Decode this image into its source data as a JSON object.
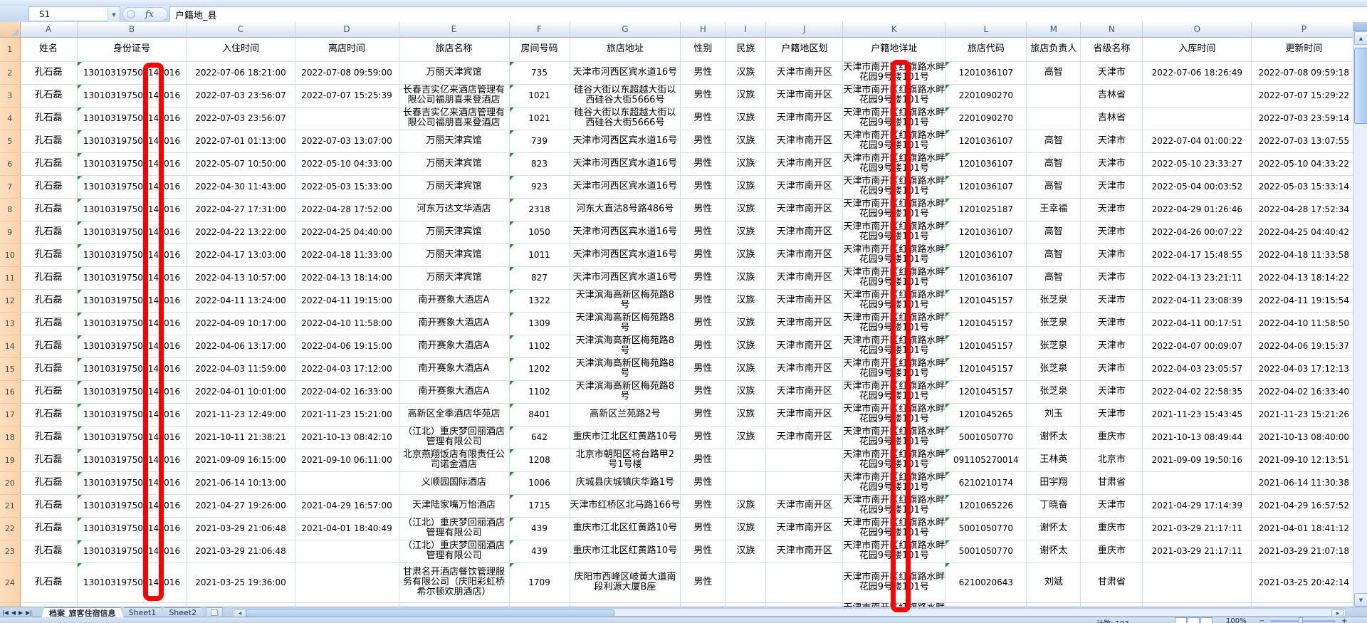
{
  "formula_bar": {
    "name_box": "S1",
    "fx_label": "fx",
    "value": "户籍地_县"
  },
  "column_letters": [
    "A",
    "B",
    "C",
    "D",
    "E",
    "F",
    "G",
    "H",
    "I",
    "J",
    "K",
    "L",
    "M",
    "N",
    "O",
    "P"
  ],
  "field_headers": [
    "姓名",
    "身份证号",
    "入住时间",
    "离店时间",
    "旅店名称",
    "房间号码",
    "旅店地址",
    "性别",
    "民族",
    "户籍地区划",
    "户籍地详址",
    "旅店代码",
    "旅店负责人",
    "省级名称",
    "入库时间",
    "更新时间"
  ],
  "household_detail_address": [
    "天津市南开区红旗路水畔",
    "花园9号楼101号"
  ],
  "annotations": {
    "highlight_color": "#FF0000",
    "targets": [
      "id-number-digits-column-B",
      "household-detail-address-column-K"
    ]
  },
  "rows": [
    {
      "n": 2,
      "name": "孔石磊",
      "id": [
        "13010319750",
        "14",
        "016"
      ],
      "in": "2022-07-06 18:21:00",
      "out": "2022-07-08 09:59:00",
      "hotel": "万丽天津宾馆",
      "room": "735",
      "addr": "天津市河西区宾水道16号",
      "sex": "男性",
      "ethnic": "汉族",
      "region": "天津市南开区",
      "code": "1201036107",
      "manager": "高智",
      "province": "天津市",
      "stored": "2022-07-06 18:26:49",
      "updated": "2022-07-08 09:59:18"
    },
    {
      "n": 3,
      "name": "孔石磊",
      "id": [
        "13010319750",
        "14",
        "016"
      ],
      "in": "2022-07-03 23:56:07",
      "out": "2022-07-07 15:25:39",
      "hotel": [
        "长春吉实亿来酒店管理有",
        "限公司福朋喜来登酒店"
      ],
      "room": "1021",
      "addr": [
        "硅谷大街以东超越大街以",
        "西硅谷大街5666号"
      ],
      "sex": "男性",
      "ethnic": "汉族",
      "region": "天津市南开区",
      "code": "2201090270",
      "manager": "",
      "province": "吉林省",
      "stored": "",
      "updated": "2022-07-07 15:29:22"
    },
    {
      "n": 4,
      "name": "孔石磊",
      "id": [
        "13010319750",
        "14",
        "016"
      ],
      "in": "2022-07-03 23:56:07",
      "out": "",
      "hotel": [
        "长春吉实亿来酒店管理有",
        "限公司福朋喜来登酒店"
      ],
      "room": "1021",
      "addr": [
        "硅谷大街以东超越大街以",
        "西硅谷大街5666号"
      ],
      "sex": "男性",
      "ethnic": "汉族",
      "region": "天津市南开区",
      "code": "2201090270",
      "manager": "",
      "province": "吉林省",
      "stored": "",
      "updated": "2022-07-03 23:59:14"
    },
    {
      "n": 5,
      "name": "孔石磊",
      "id": [
        "13010319750",
        "14",
        "016"
      ],
      "in": "2022-07-01 01:13:00",
      "out": "2022-07-03 13:07:00",
      "hotel": "万丽天津宾馆",
      "room": "739",
      "addr": "天津市河西区宾水道16号",
      "sex": "男性",
      "ethnic": "汉族",
      "region": "天津市南开区",
      "code": "1201036107",
      "manager": "高智",
      "province": "天津市",
      "stored": "2022-07-04 01:00:22",
      "updated": "2022-07-03 13:07:55"
    },
    {
      "n": 6,
      "name": "孔石磊",
      "id": [
        "13010319750",
        "14",
        "016"
      ],
      "in": "2022-05-07 10:50:00",
      "out": "2022-05-10 04:33:00",
      "hotel": "万丽天津宾馆",
      "room": "823",
      "addr": "天津市河西区宾水道16号",
      "sex": "男性",
      "ethnic": "汉族",
      "region": "天津市南开区",
      "code": "1201036107",
      "manager": "高智",
      "province": "天津市",
      "stored": "2022-05-10 23:33:27",
      "updated": "2022-05-10 04:33:22"
    },
    {
      "n": 7,
      "name": "孔石磊",
      "id": [
        "13010319750",
        "14",
        "016"
      ],
      "in": "2022-04-30 11:43:00",
      "out": "2022-05-03 15:33:00",
      "hotel": "万丽天津宾馆",
      "room": "923",
      "addr": "天津市河西区宾水道16号",
      "sex": "男性",
      "ethnic": "汉族",
      "region": "天津市南开区",
      "code": "1201036107",
      "manager": "高智",
      "province": "天津市",
      "stored": "2022-05-04 00:03:52",
      "updated": "2022-05-03 15:33:14"
    },
    {
      "n": 8,
      "name": "孔石磊",
      "id": [
        "13010319750",
        "14",
        "016"
      ],
      "in": "2022-04-27 17:31:00",
      "out": "2022-04-28 17:52:00",
      "hotel": "河东万达文华酒店",
      "room": "2318",
      "addr": "河东大直沽8号路486号",
      "sex": "男性",
      "ethnic": "汉族",
      "region": "天津市南开区",
      "code": "1201025187",
      "manager": "王幸福",
      "province": "天津市",
      "stored": "2022-04-29 01:26:46",
      "updated": "2022-04-28 17:52:34"
    },
    {
      "n": 9,
      "name": "孔石磊",
      "id": [
        "13010319750",
        "14",
        "016"
      ],
      "in": "2022-04-22 13:22:00",
      "out": "2022-04-25 04:40:00",
      "hotel": "万丽天津宾馆",
      "room": "1050",
      "addr": "天津市河西区宾水道16号",
      "sex": "男性",
      "ethnic": "汉族",
      "region": "天津市南开区",
      "code": "1201036107",
      "manager": "高智",
      "province": "天津市",
      "stored": "2022-04-26 00:07:22",
      "updated": "2022-04-25 04:40:42"
    },
    {
      "n": 10,
      "name": "孔石磊",
      "id": [
        "13010319750",
        "14",
        "016"
      ],
      "in": "2022-04-17 13:03:00",
      "out": "2022-04-18 11:33:00",
      "hotel": "万丽天津宾馆",
      "room": "1011",
      "addr": "天津市河西区宾水道16号",
      "sex": "男性",
      "ethnic": "汉族",
      "region": "天津市南开区",
      "code": "1201036107",
      "manager": "高智",
      "province": "天津市",
      "stored": "2022-04-17 15:48:55",
      "updated": "2022-04-18 11:33:58"
    },
    {
      "n": 11,
      "name": "孔石磊",
      "id": [
        "13010319750",
        "14",
        "016"
      ],
      "in": "2022-04-13 10:57:00",
      "out": "2022-04-13 18:14:00",
      "hotel": "万丽天津宾馆",
      "room": "827",
      "addr": "天津市河西区宾水道16号",
      "sex": "男性",
      "ethnic": "汉族",
      "region": "天津市南开区",
      "code": "1201036107",
      "manager": "高智",
      "province": "天津市",
      "stored": "2022-04-13 23:21:11",
      "updated": "2022-04-13 18:14:22"
    },
    {
      "n": 12,
      "name": "孔石磊",
      "id": [
        "13010319750",
        "14",
        "016"
      ],
      "in": "2022-04-11 13:24:00",
      "out": "2022-04-11 19:15:00",
      "hotel": "南开赛象大酒店A",
      "room": "1322",
      "addr": [
        "天津滨海高新区梅苑路8",
        "号"
      ],
      "sex": "男性",
      "ethnic": "汉族",
      "region": "天津市南开区",
      "code": "1201045157",
      "manager": "张芝泉",
      "province": "天津市",
      "stored": "2022-04-11 23:08:39",
      "updated": "2022-04-11 19:15:54"
    },
    {
      "n": 13,
      "name": "孔石磊",
      "id": [
        "13010319750",
        "14",
        "016"
      ],
      "in": "2022-04-09 10:17:00",
      "out": "2022-04-10 11:58:00",
      "hotel": "南开赛象大酒店A",
      "room": "1309",
      "addr": [
        "天津滨海高新区梅苑路8",
        "号"
      ],
      "sex": "男性",
      "ethnic": "汉族",
      "region": "天津市南开区",
      "code": "1201045157",
      "manager": "张芝泉",
      "province": "天津市",
      "stored": "2022-04-11 00:17:51",
      "updated": "2022-04-10 11:58:50"
    },
    {
      "n": 14,
      "name": "孔石磊",
      "id": [
        "13010319750",
        "14",
        "016"
      ],
      "in": "2022-04-06 13:17:00",
      "out": "2022-04-06 19:15:00",
      "hotel": "南开赛象大酒店A",
      "room": "1102",
      "addr": [
        "天津滨海高新区梅苑路8",
        "号"
      ],
      "sex": "男性",
      "ethnic": "汉族",
      "region": "天津市南开区",
      "code": "1201045157",
      "manager": "张芝泉",
      "province": "天津市",
      "stored": "2022-04-07 00:09:07",
      "updated": "2022-04-06 19:15:37"
    },
    {
      "n": 15,
      "name": "孔石磊",
      "id": [
        "13010319750",
        "14",
        "016"
      ],
      "in": "2022-04-03 11:59:00",
      "out": "2022-04-03 17:12:00",
      "hotel": "南开赛象大酒店A",
      "room": "1202",
      "addr": [
        "天津滨海高新区梅苑路8",
        "号"
      ],
      "sex": "男性",
      "ethnic": "汉族",
      "region": "天津市南开区",
      "code": "1201045157",
      "manager": "张芝泉",
      "province": "天津市",
      "stored": "2022-04-03 23:05:57",
      "updated": "2022-04-03 17:12:13"
    },
    {
      "n": 16,
      "name": "孔石磊",
      "id": [
        "13010319750",
        "14",
        "016"
      ],
      "in": "2022-04-01 10:01:00",
      "out": "2022-04-02 16:33:00",
      "hotel": "南开赛象大酒店A",
      "room": "1102",
      "addr": [
        "天津滨海高新区梅苑路8",
        "号"
      ],
      "sex": "男性",
      "ethnic": "汉族",
      "region": "天津市南开区",
      "code": "1201045157",
      "manager": "张芝泉",
      "province": "天津市",
      "stored": "2022-04-02 22:58:35",
      "updated": "2022-04-02 16:33:40"
    },
    {
      "n": 17,
      "name": "孔石磊",
      "id": [
        "13010319750",
        "14",
        "016"
      ],
      "in": "2021-11-23 12:49:00",
      "out": "2021-11-23 15:21:00",
      "hotel": "高新区全季酒店华苑店",
      "room": "8401",
      "addr": "高新区兰苑路2号",
      "sex": "男性",
      "ethnic": "汉族",
      "region": "天津市南开区",
      "code": "1201045265",
      "manager": "刘玉",
      "province": "天津市",
      "stored": "2021-11-23 15:43:45",
      "updated": "2021-11-23 15:21:26"
    },
    {
      "n": 18,
      "name": "孔石磊",
      "id": [
        "13010319750",
        "14",
        "016"
      ],
      "in": "2021-10-11 21:38:21",
      "out": "2021-10-13 08:42:10",
      "hotel": [
        "（江北）重庆梦回丽酒店",
        "管理有限公司"
      ],
      "room": "642",
      "addr": "重庆市江北区红黄路10号",
      "sex": "男性",
      "ethnic": "汉族",
      "region": "天津市南开区",
      "code": "5001050770",
      "manager": "谢怀太",
      "province": "重庆市",
      "stored": "2021-10-13 08:49:44",
      "updated": "2021-10-13 08:40:00"
    },
    {
      "n": 19,
      "name": "孔石磊",
      "id": [
        "13010319750",
        "14",
        "016"
      ],
      "in": "2021-09-09 16:15:00",
      "out": "2021-09-10 06:11:00",
      "hotel": [
        "北京燕翔饭店有限责任公",
        "司诺金酒店"
      ],
      "room": "1208",
      "addr": [
        "北京市朝阳区将台路甲2",
        "号1号楼"
      ],
      "sex": "男性",
      "ethnic": "",
      "region": "",
      "code": "091105270014",
      "manager": "王林英",
      "province": "北京市",
      "stored": "2021-09-09 19:50:16",
      "updated": "2021-09-10 12:13:51"
    },
    {
      "n": 20,
      "name": "孔石磊",
      "id": [
        "13010319750",
        "14",
        "016"
      ],
      "in": "2021-06-14 10:13:00",
      "out": "",
      "hotel": "义顺园国际酒店",
      "room": "1006",
      "addr": "庆城县庆城镇庆华路1号",
      "sex": "男性",
      "ethnic": "",
      "region": "",
      "code": "6210210174",
      "manager": "田宇翔",
      "province": "甘肃省",
      "stored": "",
      "updated": "2021-06-14 11:30:38"
    },
    {
      "n": 21,
      "name": "孔石磊",
      "id": [
        "13010319750",
        "14",
        "016"
      ],
      "in": "2021-04-27 19:26:00",
      "out": "2021-04-29 16:57:00",
      "hotel": "天津陆家嘴万怡酒店",
      "room": "1715",
      "addr": "天津市红桥区北马路166号",
      "sex": "男性",
      "ethnic": "汉族",
      "region": "天津市南开区",
      "code": "1201065226",
      "manager": "丁晓奋",
      "province": "天津市",
      "stored": "2021-04-29 17:14:39",
      "updated": "2021-04-29 16:57:52"
    },
    {
      "n": 22,
      "name": "孔石磊",
      "id": [
        "13010319750",
        "14",
        "016"
      ],
      "in": "2021-03-29 21:06:48",
      "out": "2021-04-01 18:40:49",
      "hotel": [
        "（江北）重庆梦回丽酒店",
        "管理有限公司"
      ],
      "room": "439",
      "addr": "重庆市江北区红黄路10号",
      "sex": "男性",
      "ethnic": "汉族",
      "region": "天津市南开区",
      "code": "5001050770",
      "manager": "谢怀太",
      "province": "重庆市",
      "stored": "2021-03-29 21:17:11",
      "updated": "2021-04-01 18:41:12"
    },
    {
      "n": 23,
      "name": "孔石磊",
      "id": [
        "13010319750",
        "14",
        "016"
      ],
      "in": "2021-03-29 21:06:48",
      "out": "",
      "hotel": [
        "（江北）重庆梦回丽酒店",
        "管理有限公司"
      ],
      "room": "439",
      "addr": "重庆市江北区红黄路10号",
      "sex": "男性",
      "ethnic": "汉族",
      "region": "天津市南开区",
      "code": "5001050770",
      "manager": "谢怀太",
      "province": "重庆市",
      "stored": "2021-03-29 21:17:11",
      "updated": "2021-03-29 21:07:18"
    },
    {
      "n": 24,
      "name": "孔石磊",
      "id": [
        "13010319750",
        "14",
        "016"
      ],
      "in": "2021-03-25 19:36:00",
      "out": "",
      "hotel": [
        "甘肃名开酒店餐饮管理服",
        "务有限公司（庆阳彩虹桥",
        "希尔顿欢朋酒店）"
      ],
      "room": "1709",
      "addr": [
        "庆阳市西峰区岐黄大道南",
        "段利源大厦B座"
      ],
      "sex": "男性",
      "ethnic": "",
      "region": "",
      "code": "6210020643",
      "manager": "刘斌",
      "province": "甘肃省",
      "stored": "",
      "updated": "2021-03-25 20:42:14"
    }
  ],
  "tab_bar": {
    "nav_icons": [
      "|◀",
      "◀",
      "▶",
      "▶|"
    ],
    "sheet_tabs": [
      {
        "label": "档案_旅客住宿信息",
        "active": true
      },
      {
        "label": "Sheet1",
        "active": false
      },
      {
        "label": "Sheet2",
        "active": false
      }
    ]
  },
  "status_bar": {
    "count": "计数: 103",
    "zoom_level": "100%",
    "zoom_minus": "−",
    "zoom_plus": "+"
  }
}
